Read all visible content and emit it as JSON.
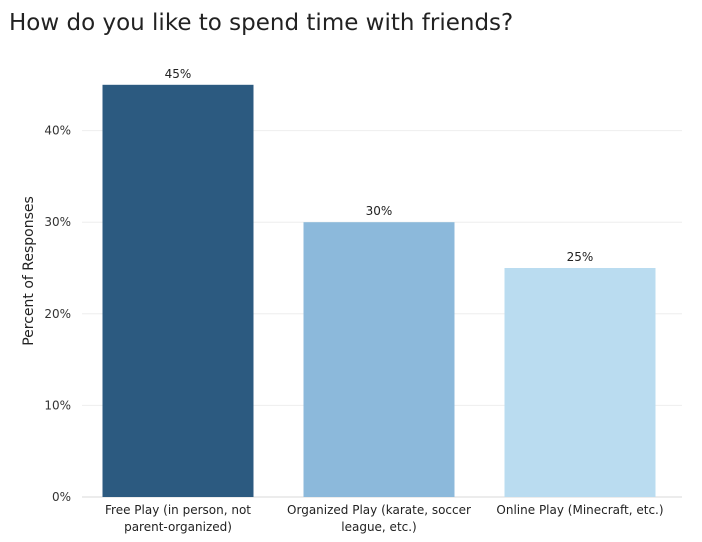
{
  "chart_data": {
    "type": "bar",
    "title": "How do you like to spend time with friends?",
    "ylabel": "Percent of Responses",
    "xlabel": "",
    "categories": [
      [
        "Free Play (in person, not",
        "parent-organized)"
      ],
      [
        "Organized Play (karate, soccer",
        "league, etc.)"
      ],
      [
        "Online Play (Minecraft, etc.)"
      ]
    ],
    "values": [
      45,
      30,
      25
    ],
    "value_labels": [
      "45%",
      "30%",
      "25%"
    ],
    "colors": [
      "#2c5a80",
      "#8cb9db",
      "#badcf0"
    ],
    "yticks": [
      0,
      10,
      20,
      30,
      40
    ],
    "ytick_labels": [
      "0%",
      "10%",
      "20%",
      "30%",
      "40%"
    ],
    "ylim": [
      0,
      50
    ],
    "grid": true,
    "legend": "none"
  }
}
